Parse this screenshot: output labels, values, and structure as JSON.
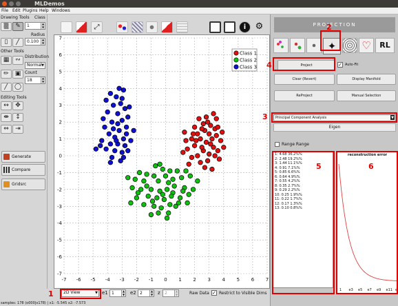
{
  "window": {
    "title": "MLDemos"
  },
  "menu": [
    "File",
    "Edit",
    "Plugins",
    "Help",
    "Windows"
  ],
  "left_panel": {
    "drawing_tools_label": "Drawing Tools",
    "class_label": "Class",
    "class_value": "1",
    "radius_label": "Radius",
    "radius_value": "0.100",
    "other_tools_label": "Other Tools",
    "distribution_label": "Distribution",
    "distribution_value": "Normal",
    "count_label": "Count",
    "count_value": "18",
    "editing_tools_label": "Editing Tools",
    "generate_label": "Generate",
    "compare_label": "Compare",
    "gridsrc_label": "Gridsrc"
  },
  "bottom": {
    "view_select": "2D View",
    "e1_label": "e1",
    "e1_value": "1",
    "e2_label": "e2",
    "e2_value": "2",
    "z_label": "z",
    "z_value": "2",
    "raw_data_label": "Raw Data",
    "restrict_label": "Restrict to Visible Dims",
    "status_text": "samples: 178 (o000|x178) | x1: -5.545 x2: -7.573"
  },
  "right_panel": {
    "projection_header": "PROJECTION",
    "project_button": "Project",
    "auto_fit_label": "Auto-Fit",
    "clear_button": "Clear (Revert)",
    "display_manifold_button": "Display Manifold",
    "reproject_button": "ReProject",
    "manual_selection_button": "Manual Selection",
    "method_select": "Principal Component Analysis",
    "eigen_tab": "Eigen",
    "range_label": "Range Range",
    "eigen_values": [
      "1: 4.68 36.2%%",
      "2: 2.48 19.2%%",
      "3: 1.44 11.1%%",
      "4: 0.91 7.1%%",
      "5: 0.85 6.6%%",
      "6: 0.64 4.9%%",
      "7: 0.55 4.2%%",
      "8: 0.35 2.7%%",
      "9: 0.29 2.2%%",
      "10: 0.25 1.9%%",
      "11: 0.22 1.7%%",
      "12: 0.17 1.3%%",
      "13: 0.10 0.8%%"
    ],
    "reconstruction_title": "reconstruction error",
    "error_axis_labels": [
      "1",
      "e3",
      "e5",
      "e7",
      "e9",
      "e11",
      "e13"
    ]
  },
  "annotations": [
    "1",
    "2",
    "3",
    "4",
    "5",
    "6"
  ],
  "colors": {
    "accent": "#e00000",
    "class1": "#e01010",
    "class2": "#10c010",
    "class3": "#1010d0"
  },
  "chart_data": {
    "type": "scatter",
    "xlim": [
      -7,
      7
    ],
    "ylim": [
      -7,
      7
    ],
    "x_ticks": [
      "-7",
      "-6",
      "-5",
      "-4",
      "-3",
      "-2",
      "-1",
      "0",
      "1",
      "2",
      "3",
      "4",
      "5",
      "6",
      "7"
    ],
    "y_ticks": [
      "7",
      "6",
      "5",
      "4",
      "3",
      "2",
      "1",
      "0",
      "-1",
      "-2",
      "-3",
      "-4",
      "-5",
      "-6",
      "-7"
    ],
    "grid": true,
    "legend_position": "top-right",
    "series": [
      {
        "name": "Class 1",
        "color": "#e01010",
        "points": [
          [
            3.3,
            2.5
          ],
          [
            3.5,
            2.2
          ],
          [
            2.9,
            2.0
          ],
          [
            3.1,
            1.8
          ],
          [
            2.6,
            1.9
          ],
          [
            3.4,
            1.6
          ],
          [
            2.7,
            1.5
          ],
          [
            2.2,
            1.3
          ],
          [
            3.0,
            1.3
          ],
          [
            3.5,
            1.2
          ],
          [
            2.4,
            1.0
          ],
          [
            3.2,
            1.0
          ],
          [
            1.8,
            1.0
          ],
          [
            2.8,
            0.8
          ],
          [
            3.8,
            0.9
          ],
          [
            2.0,
            0.6
          ],
          [
            3.3,
            0.5
          ],
          [
            1.5,
            0.4
          ],
          [
            2.6,
            0.3
          ],
          [
            3.0,
            0.1
          ],
          [
            3.4,
            0.0
          ],
          [
            2.2,
            0.0
          ],
          [
            1.8,
            -0.1
          ],
          [
            2.9,
            -0.3
          ],
          [
            2.4,
            -0.4
          ],
          [
            3.7,
            -0.2
          ],
          [
            1.3,
            1.4
          ],
          [
            2.5,
            1.6
          ],
          [
            3.9,
            1.4
          ],
          [
            4.0,
            0.5
          ],
          [
            2.0,
            1.7
          ],
          [
            1.2,
            0.2
          ],
          [
            2.7,
            -0.7
          ],
          [
            3.2,
            -0.8
          ],
          [
            1.6,
            -0.5
          ],
          [
            3.6,
            0.3
          ],
          [
            2.3,
            2.2
          ],
          [
            2.8,
            2.3
          ],
          [
            1.4,
            0.9
          ],
          [
            3.1,
            0.7
          ],
          [
            2.1,
            0.9
          ],
          [
            3.6,
            1.7
          ],
          [
            2.5,
            0.5
          ],
          [
            1.9,
            1.3
          ]
        ]
      },
      {
        "name": "Class 2",
        "color": "#10c010",
        "points": [
          [
            -1.8,
            -1.0
          ],
          [
            -1.3,
            -1.1
          ],
          [
            -0.8,
            -1.2
          ],
          [
            -0.2,
            -0.8
          ],
          [
            0.3,
            -0.9
          ],
          [
            0.8,
            -0.9
          ],
          [
            1.4,
            -0.9
          ],
          [
            -2.1,
            -1.4
          ],
          [
            -1.5,
            -1.5
          ],
          [
            -0.5,
            -1.5
          ],
          [
            0.2,
            -1.6
          ],
          [
            1.1,
            -1.3
          ],
          [
            1.7,
            -1.2
          ],
          [
            2.2,
            -1.5
          ],
          [
            -2.3,
            -1.9
          ],
          [
            -1.7,
            -2.0
          ],
          [
            -1.0,
            -2.0
          ],
          [
            -0.4,
            -2.1
          ],
          [
            0.1,
            -2.0
          ],
          [
            0.5,
            -2.2
          ],
          [
            1.3,
            -1.9
          ],
          [
            -2.0,
            -2.5
          ],
          [
            -1.2,
            -2.4
          ],
          [
            -0.6,
            -2.5
          ],
          [
            -0.1,
            -2.6
          ],
          [
            0.4,
            -2.4
          ],
          [
            1.0,
            -2.5
          ],
          [
            1.6,
            -2.3
          ],
          [
            -1.5,
            -2.9
          ],
          [
            -0.8,
            -3.0
          ],
          [
            -0.3,
            -3.1
          ],
          [
            0.3,
            -2.9
          ],
          [
            0.7,
            -3.0
          ],
          [
            -1.0,
            -3.5
          ],
          [
            -0.5,
            -3.4
          ],
          [
            0.2,
            -3.4
          ],
          [
            -0.4,
            -0.5
          ],
          [
            0.5,
            -1.4
          ],
          [
            1.9,
            -2.0
          ],
          [
            -2.6,
            -1.3
          ],
          [
            -0.7,
            -0.6
          ],
          [
            0.9,
            -2.8
          ],
          [
            -1.9,
            -2.2
          ],
          [
            1.2,
            -2.1
          ],
          [
            -0.2,
            -2.3
          ],
          [
            0.6,
            -1.8
          ],
          [
            -1.3,
            -1.8
          ],
          [
            0.0,
            -1.2
          ],
          [
            -2.4,
            -2.8
          ],
          [
            1.5,
            -2.8
          ],
          [
            -0.9,
            -2.7
          ],
          [
            0.1,
            -3.7
          ]
        ]
      },
      {
        "name": "Class 3",
        "color": "#1010d0",
        "points": [
          [
            -3.8,
            3.7
          ],
          [
            -3.4,
            3.5
          ],
          [
            -2.9,
            3.9
          ],
          [
            -3.1,
            3.1
          ],
          [
            -3.6,
            3.0
          ],
          [
            -2.8,
            2.8
          ],
          [
            -3.3,
            2.5
          ],
          [
            -4.0,
            2.6
          ],
          [
            -2.6,
            2.3
          ],
          [
            -3.0,
            2.1
          ],
          [
            -3.7,
            2.0
          ],
          [
            -4.2,
            1.7
          ],
          [
            -2.7,
            1.7
          ],
          [
            -3.2,
            1.5
          ],
          [
            -3.9,
            1.3
          ],
          [
            -3.5,
            1.1
          ],
          [
            -2.9,
            1.0
          ],
          [
            -4.4,
            0.9
          ],
          [
            -3.8,
            0.7
          ],
          [
            -3.3,
            0.7
          ],
          [
            -2.8,
            0.6
          ],
          [
            -4.1,
            0.4
          ],
          [
            -3.5,
            0.3
          ],
          [
            -3.0,
            0.2
          ],
          [
            -2.6,
            0.3
          ],
          [
            -3.7,
            -0.1
          ],
          [
            -3.1,
            -0.3
          ],
          [
            -4.5,
            0.6
          ],
          [
            -2.4,
            0.9
          ],
          [
            -3.6,
            1.6
          ],
          [
            -2.5,
            2.9
          ],
          [
            -4.1,
            3.3
          ],
          [
            -3.2,
            4.0
          ],
          [
            -2.7,
            1.3
          ],
          [
            -4.3,
            2.2
          ],
          [
            -3.4,
            0.9
          ],
          [
            -3.0,
            3.4
          ],
          [
            -2.2,
            1.5
          ],
          [
            -3.8,
            -0.4
          ],
          [
            -3.3,
            1.9
          ],
          [
            -4.8,
            0.4
          ],
          [
            -2.9,
            -0.1
          ]
        ]
      }
    ]
  }
}
